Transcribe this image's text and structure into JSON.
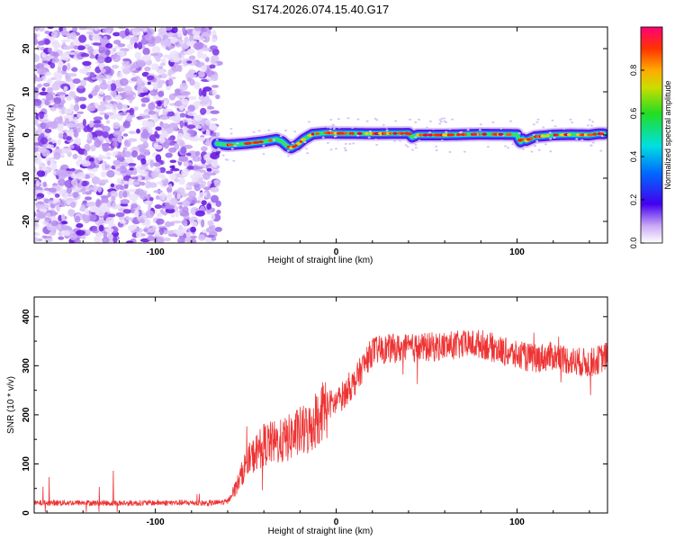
{
  "title": "S174.2026.074.15.40.G17",
  "chart_data": [
    {
      "type": "heatmap",
      "xlabel": "Height of straight line (km)",
      "ylabel": "Frequency (Hz)",
      "xlim": [
        -167,
        150
      ],
      "ylim": [
        -25,
        25
      ],
      "xticks": [
        -100,
        0,
        100
      ],
      "yticks": [
        -20,
        -10,
        0,
        10,
        20
      ],
      "noise_region_x": [
        -167,
        -65
      ],
      "ridge_x": [
        -66,
        -60,
        -50,
        -40,
        -33,
        -30,
        -27,
        -25,
        -22,
        -18,
        -13,
        -5,
        0,
        20,
        40,
        42,
        45,
        60,
        80,
        100,
        101,
        102,
        103,
        105,
        110,
        120,
        130,
        140,
        145,
        148
      ],
      "ridge_y": [
        -2.0,
        -2.3,
        -2.0,
        -1.5,
        -1.0,
        -1.5,
        -2.6,
        -3.0,
        -2.4,
        -1.0,
        0.2,
        0.5,
        0.4,
        0.3,
        0.4,
        -0.5,
        0.0,
        0.0,
        0.2,
        0.1,
        -1.0,
        -1.6,
        -0.9,
        -1.3,
        -0.4,
        0.0,
        0.1,
        0.0,
        0.3,
        0.3
      ],
      "colorbar": {
        "label": "Normalized spectral amplitude",
        "range": [
          0,
          1
        ],
        "ticks": [
          0.0,
          0.2,
          0.4,
          0.6,
          0.8
        ]
      }
    },
    {
      "type": "line",
      "xlabel": "Height of straight line (km)",
      "ylabel": "SNR (10 * v/v)",
      "xlim": [
        -167,
        150
      ],
      "ylim": [
        0,
        440
      ],
      "xticks": [
        -100,
        0,
        100
      ],
      "yticks": [
        0,
        100,
        200,
        300,
        400
      ],
      "color": "#ee3333",
      "series": [
        {
          "name": "SNR",
          "x": [
            -167,
            -150,
            -120,
            -90,
            -70,
            -60,
            -55,
            -50,
            -40,
            -30,
            -20,
            -15,
            -10,
            -5,
            0,
            5,
            10,
            15,
            20,
            30,
            40,
            60,
            80,
            100,
            110,
            120,
            130,
            140,
            150
          ],
          "y": [
            20,
            21,
            20,
            21,
            20,
            23,
            55,
            100,
            140,
            145,
            165,
            170,
            200,
            220,
            225,
            245,
            265,
            300,
            330,
            335,
            335,
            340,
            345,
            320,
            315,
            320,
            310,
            305,
            320
          ]
        }
      ]
    }
  ]
}
